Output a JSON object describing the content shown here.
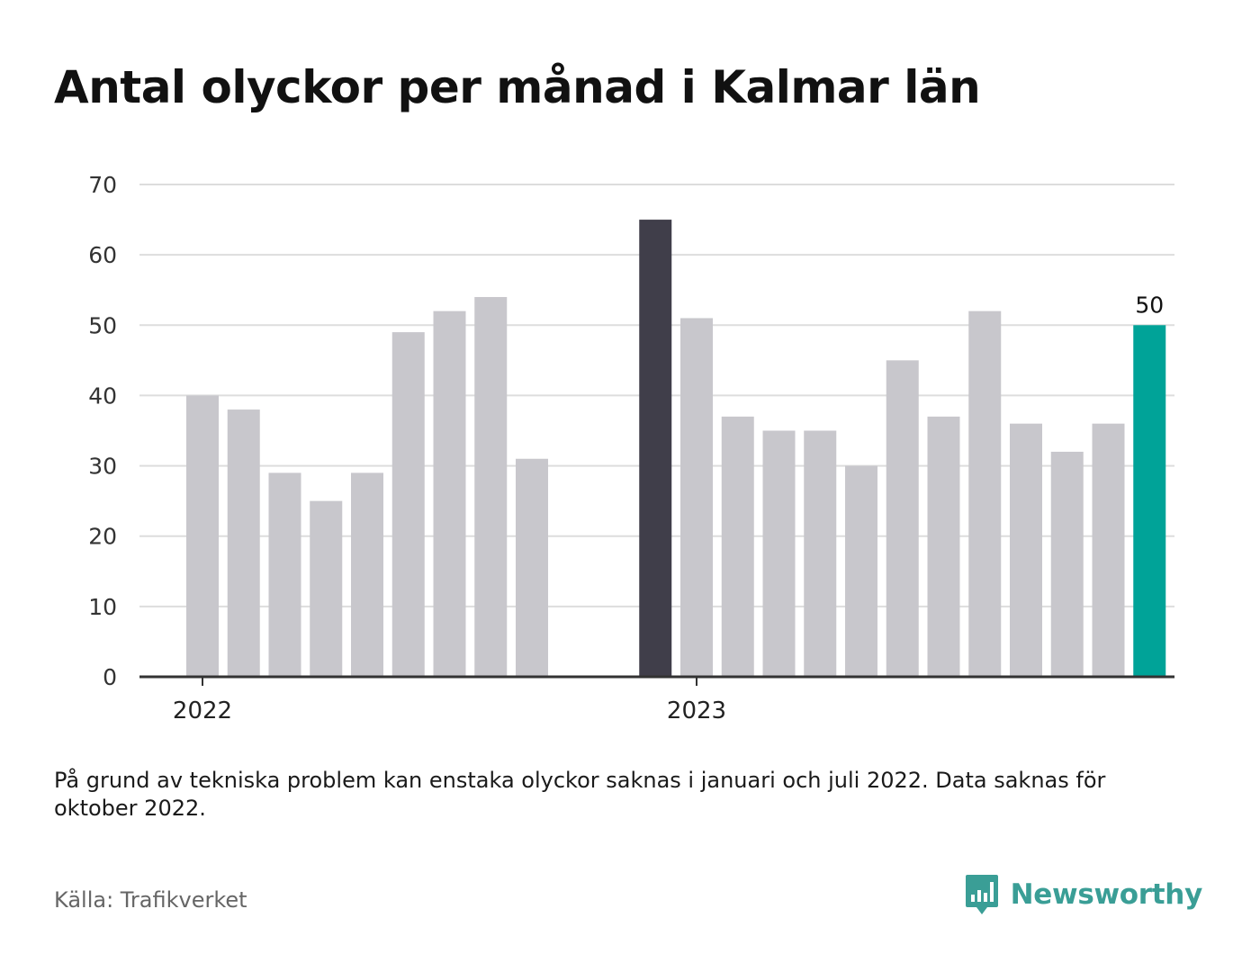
{
  "title": "Antal olyckor per månad i Kalmar län",
  "note": "På grund av tekniska problem kan enstaka olyckor saknas i januari och juli 2022. Data saknas för oktober 2022.",
  "source": "Källa: Trafikverket",
  "brand": {
    "name": "Newsworthy",
    "icon": "newsworthy-logo-icon",
    "color": "#3a9e96"
  },
  "chart_data": {
    "type": "bar",
    "categories": [
      "2022-01",
      "2022-02",
      "2022-03",
      "2022-04",
      "2022-05",
      "2022-06",
      "2022-07",
      "2022-08",
      "2022-09",
      "2022-10",
      "2022-11",
      "2022-12",
      "2023-01",
      "2023-02",
      "2023-03",
      "2023-04",
      "2023-05",
      "2023-06",
      "2023-07",
      "2023-08",
      "2023-09",
      "2023-10",
      "2023-11",
      "2023-12"
    ],
    "values": [
      40,
      38,
      29,
      25,
      29,
      49,
      52,
      54,
      31,
      null,
      null,
      65,
      51,
      37,
      35,
      35,
      30,
      45,
      37,
      52,
      36,
      32,
      36,
      50
    ],
    "highlight": {
      "max_index": 11,
      "latest_index": 23
    },
    "data_labels": [
      {
        "index": 23,
        "text": "50"
      }
    ],
    "x_tick_labels": [
      {
        "index": 0,
        "text": "2022"
      },
      {
        "index": 12,
        "text": "2023"
      }
    ],
    "y_ticks": [
      0,
      10,
      20,
      30,
      40,
      50,
      60,
      70
    ],
    "ylim": [
      0,
      70
    ],
    "grid": true,
    "legend": "none",
    "colors": {
      "default": "#c8c7cc",
      "max": "#403e4a",
      "latest": "#00a398",
      "grid": "#dddddd",
      "axis": "#333333"
    }
  }
}
